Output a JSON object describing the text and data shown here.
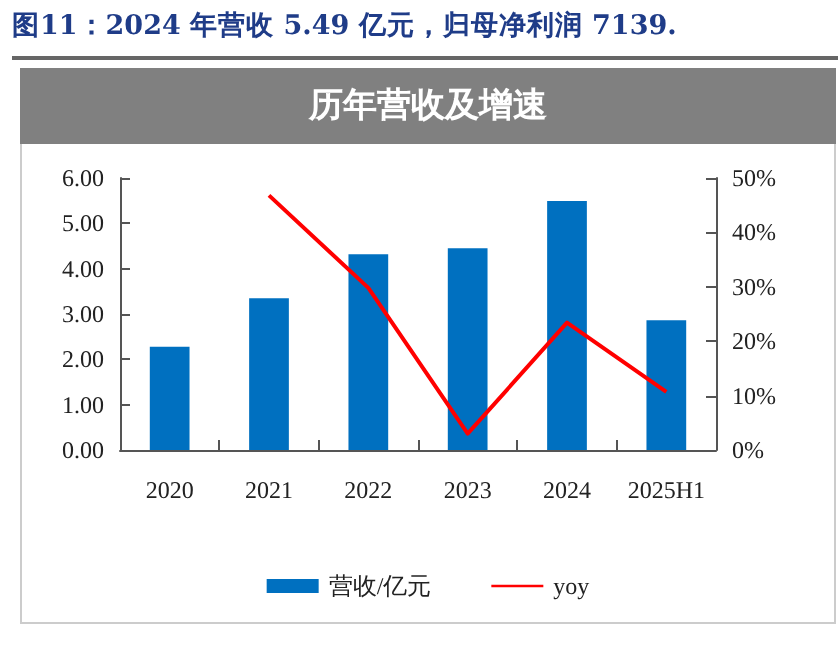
{
  "chart_data": {
    "type": "bar",
    "title": "图11：2024 年营收 5.49 亿元，归母净利润 7139.",
    "subtitle": "历年营收及增速",
    "categories": [
      "2020",
      "2021",
      "2022",
      "2023",
      "2024",
      "2025H1"
    ],
    "series": [
      {
        "name": "营收/亿元",
        "color": "#0070c0",
        "values": [
          2.28,
          3.35,
          4.32,
          4.45,
          5.49,
          2.86
        ]
      },
      {
        "name": "yoy",
        "type": "line",
        "axis": "y2",
        "color": "#ff0000",
        "values": [
          null,
          46.8,
          29.8,
          3.0,
          23.4,
          10.7
        ]
      }
    ],
    "ylim": [
      0,
      6
    ],
    "yticks": [
      {
        "value": 0,
        "label": "0.00"
      },
      {
        "value": 1,
        "label": "1.00"
      },
      {
        "value": 2,
        "label": "2.00"
      },
      {
        "value": 3,
        "label": "3.00"
      },
      {
        "value": 4,
        "label": "4.00"
      },
      {
        "value": 5,
        "label": "5.00"
      },
      {
        "value": 6,
        "label": "6.00"
      }
    ],
    "y2lim": [
      0,
      50
    ],
    "y2ticks": [
      {
        "value": 0,
        "label": "0%"
      },
      {
        "value": 10,
        "label": "10%"
      },
      {
        "value": 20,
        "label": "20%"
      },
      {
        "value": 30,
        "label": "30%"
      },
      {
        "value": 40,
        "label": "40%"
      },
      {
        "value": 50,
        "label": "50%"
      }
    ],
    "legend": "bottom",
    "grid": false,
    "marker": "none",
    "line_style": "solid"
  }
}
